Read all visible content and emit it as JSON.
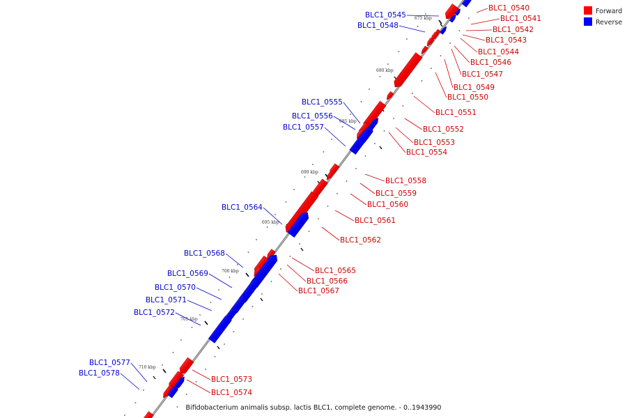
{
  "legend": {
    "forward_label": "Forward",
    "reverse_label": "Reverse",
    "forward_color": "#ff0000",
    "reverse_color": "#0000ff"
  },
  "caption": "Bifidobacterium animalis subsp. lactis BLC1, complete genome. - 0..1943990",
  "ticks": [
    "675 kbp",
    "680 kbp",
    "685 kbp",
    "690 kbp",
    "695 kbp",
    "700 kbp",
    "705 kbp",
    "710 kbp"
  ],
  "reverse_genes": [
    "BLC1_0545",
    "BLC1_0548",
    "BLC1_0555",
    "BLC1_0556",
    "BLC1_0557",
    "BLC1_0564",
    "BLC1_0568",
    "BLC1_0569",
    "BLC1_0570",
    "BLC1_0571",
    "BLC1_0572",
    "BLC1_0577",
    "BLC1_0578"
  ],
  "forward_genes": [
    "BLC1_0540",
    "BLC1_0541",
    "BLC1_0542",
    "BLC1_0543",
    "BLC1_0544",
    "BLC1_0546",
    "BLC1_0547",
    "BLC1_0549",
    "BLC1_0550",
    "BLC1_0551",
    "BLC1_0552",
    "BLC1_0553",
    "BLC1_0554",
    "BLC1_0558",
    "BLC1_0559",
    "BLC1_0560",
    "BLC1_0561",
    "BLC1_0562",
    "BLC1_0565",
    "BLC1_0566",
    "BLC1_0567",
    "BLC1_0573",
    "BLC1_0574"
  ]
}
